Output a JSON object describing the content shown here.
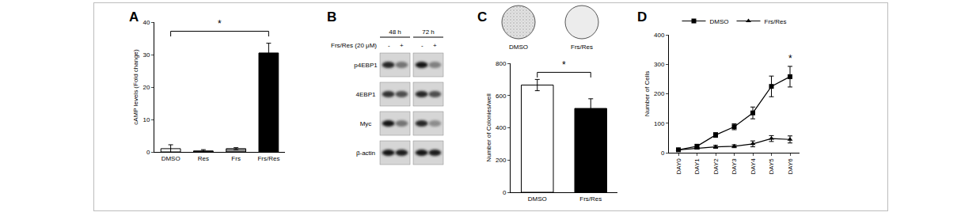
{
  "chart_data": [
    {
      "label": "A",
      "type": "bar",
      "y_label": "cAMP levels (Fold change)",
      "categories": [
        "DMSO",
        "Res",
        "Frs",
        "Frs/Res"
      ],
      "values": [
        1.0,
        0.3,
        1.0,
        30.5
      ],
      "errors": [
        1.2,
        0.4,
        0.3,
        3.0
      ],
      "colors": [
        "#ffffff",
        "#3a3a3a",
        "#8c8c8c",
        "#000000"
      ],
      "ylim": [
        0,
        40
      ],
      "yticks": [
        0,
        10,
        20,
        30,
        40
      ],
      "grid": false,
      "significance": [
        {
          "from": "DMSO",
          "to": "Frs/Res",
          "label": "*"
        }
      ]
    },
    {
      "label": "C",
      "type": "bar",
      "images": [
        "DMSO",
        "Frs/Res"
      ],
      "y_label": "Number of Colonies/well",
      "categories": [
        "DMSO",
        "Frs/Res"
      ],
      "values": [
        665,
        520
      ],
      "errors": [
        35,
        60
      ],
      "colors": [
        "#ffffff",
        "#000000"
      ],
      "ylim": [
        0,
        800
      ],
      "yticks": [
        0,
        200,
        400,
        600,
        800
      ],
      "grid": false,
      "significance": [
        {
          "from": "DMSO",
          "to": "Frs/Res",
          "label": "*"
        }
      ]
    },
    {
      "label": "D",
      "type": "line",
      "y_label": "Number of Cells",
      "categories": [
        "DAY0",
        "DAY1",
        "DAY2",
        "DAY3",
        "DAY4",
        "DAY5",
        "DAY6"
      ],
      "series": [
        {
          "name": "DMSO",
          "color": "#000000",
          "marker": "square",
          "values": [
            10,
            22,
            60,
            88,
            135,
            225,
            258
          ],
          "errors": [
            3,
            5,
            8,
            10,
            20,
            35,
            35
          ]
        },
        {
          "name": "Frs/Res",
          "color": "#000000",
          "marker": "triangle-up",
          "values": [
            10,
            15,
            20,
            22,
            30,
            48,
            45
          ],
          "errors": [
            2,
            3,
            5,
            5,
            10,
            10,
            12
          ]
        }
      ],
      "ylim": [
        0,
        400
      ],
      "yticks": [
        0,
        100,
        200,
        300,
        400
      ],
      "grid": false,
      "legend": "top",
      "significance": [
        {
          "at": "DAY6",
          "label": "*"
        }
      ]
    }
  ],
  "western_blot": {
    "label": "B",
    "timepoints": [
      "48 h",
      "72 h"
    ],
    "treatment": "Frs/Res (20 μM)",
    "lanes": [
      "-",
      "+"
    ],
    "rows": [
      "p4EBP1",
      "4EBP1",
      "Myc",
      "β-actin"
    ]
  }
}
